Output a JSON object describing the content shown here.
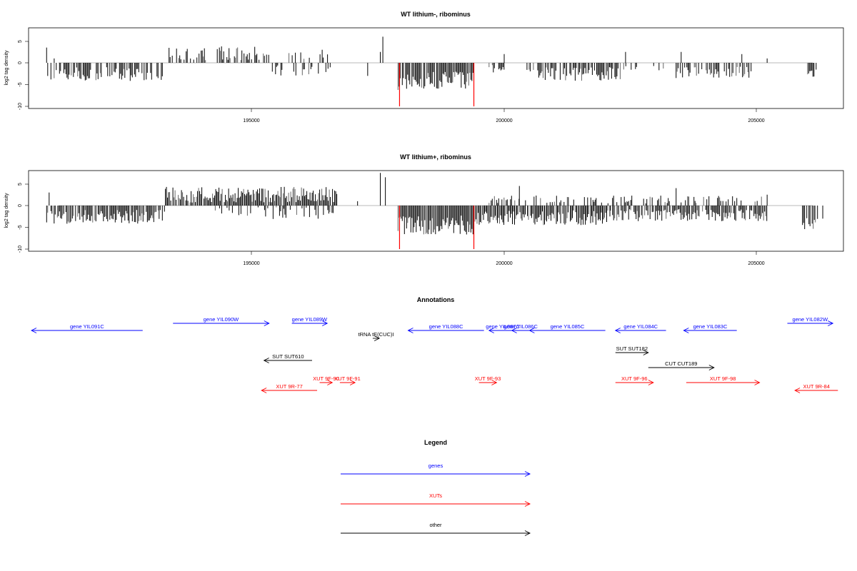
{
  "charts": [
    {
      "title": "WT lithium-, ribominus",
      "ylabel": "log2 tag density",
      "yticks": [
        "-10",
        "-5",
        "0",
        "5"
      ],
      "xticks": [
        "195000",
        "200000",
        "205000"
      ]
    },
    {
      "title": "WT lithium+, ribominus",
      "ylabel": "log2 tag density",
      "yticks": [
        "-10",
        "-5",
        "0",
        "5"
      ],
      "xticks": [
        "195000",
        "200000",
        "205000"
      ]
    }
  ],
  "chart_data": [
    {
      "type": "bar",
      "title": "WT lithium-, ribominus",
      "ylabel": "log2 tag density",
      "xlim": [
        190200,
        207700
      ],
      "ylim": [
        -10,
        8
      ],
      "grid": false,
      "segments": [
        {
          "from": 190950,
          "to": 193300,
          "sign": -1,
          "mean": 2.6,
          "spread": 1.6,
          "density": 0.55
        },
        {
          "from": 193350,
          "to": 195400,
          "sign": 1,
          "mean": 2.2,
          "spread": 1.6,
          "density": 0.55
        },
        {
          "from": 195350,
          "to": 196600,
          "sign": -1,
          "mean": 1.8,
          "spread": 1.2,
          "density": 0.25
        },
        {
          "from": 195700,
          "to": 196600,
          "sign": 1,
          "mean": 1.6,
          "spread": 1.0,
          "density": 0.25
        },
        {
          "from": 197900,
          "to": 199400,
          "sign": -1,
          "mean": 4.2,
          "spread": 2.2,
          "density": 0.9
        },
        {
          "from": 199700,
          "to": 200000,
          "sign": -1,
          "mean": 1.4,
          "spread": 1.0,
          "density": 0.4
        },
        {
          "from": 200450,
          "to": 202300,
          "sign": -1,
          "mean": 2.6,
          "spread": 1.6,
          "density": 0.75
        },
        {
          "from": 202300,
          "to": 203300,
          "sign": -1,
          "mean": 1.5,
          "spread": 1.0,
          "density": 0.25
        },
        {
          "from": 203400,
          "to": 204900,
          "sign": -1,
          "mean": 2.2,
          "spread": 1.4,
          "density": 0.6
        },
        {
          "from": 206000,
          "to": 206200,
          "sign": -1,
          "mean": 2.5,
          "spread": 1.0,
          "density": 0.7
        }
      ],
      "bars": [
        {
          "x": 190950,
          "y": 3.5
        },
        {
          "x": 191100,
          "y": 1.0
        },
        {
          "x": 196400,
          "y": 3.0
        },
        {
          "x": 197300,
          "y": -3.0
        },
        {
          "x": 197550,
          "y": 2.5
        },
        {
          "x": 197600,
          "y": 6.0
        },
        {
          "x": 200000,
          "y": 2.0
        },
        {
          "x": 202400,
          "y": 2.5
        },
        {
          "x": 203500,
          "y": 2.5
        },
        {
          "x": 204700,
          "y": 2.0
        },
        {
          "x": 205200,
          "y": 1.0
        }
      ],
      "red_bars": [
        {
          "x": 197930,
          "y": -10
        },
        {
          "x": 199400,
          "y": -10
        }
      ]
    },
    {
      "type": "bar",
      "title": "WT lithium+, ribominus",
      "ylabel": "log2 tag density",
      "xlim": [
        190200,
        207700
      ],
      "ylim": [
        -10,
        8
      ],
      "grid": false,
      "segments": [
        {
          "from": 190950,
          "to": 193300,
          "sign": -1,
          "mean": 2.6,
          "spread": 1.6,
          "density": 0.85
        },
        {
          "from": 193300,
          "to": 196700,
          "sign": 1,
          "mean": 2.5,
          "spread": 1.8,
          "density": 0.95
        },
        {
          "from": 194200,
          "to": 196700,
          "sign": -1,
          "mean": 1.8,
          "spread": 1.4,
          "density": 0.35
        },
        {
          "from": 197900,
          "to": 199400,
          "sign": -1,
          "mean": 4.5,
          "spread": 2.2,
          "density": 1.0
        },
        {
          "from": 199400,
          "to": 202100,
          "sign": -1,
          "mean": 2.8,
          "spread": 1.7,
          "density": 0.95
        },
        {
          "from": 199700,
          "to": 202100,
          "sign": 1,
          "mean": 1.4,
          "spread": 0.9,
          "density": 0.35
        },
        {
          "from": 202100,
          "to": 205200,
          "sign": -1,
          "mean": 2.2,
          "spread": 1.4,
          "density": 0.8
        },
        {
          "from": 202100,
          "to": 205200,
          "sign": 1,
          "mean": 1.4,
          "spread": 0.9,
          "density": 0.3
        },
        {
          "from": 205900,
          "to": 206200,
          "sign": -1,
          "mean": 4.0,
          "spread": 1.5,
          "density": 0.8
        }
      ],
      "bars": [
        {
          "x": 191000,
          "y": 3.0
        },
        {
          "x": 197100,
          "y": 1.0
        },
        {
          "x": 197550,
          "y": 7.5
        },
        {
          "x": 197650,
          "y": 6.5
        },
        {
          "x": 200300,
          "y": 4.5
        },
        {
          "x": 203400,
          "y": 4.0
        },
        {
          "x": 205200,
          "y": 2.5
        },
        {
          "x": 206300,
          "y": -3.0
        }
      ],
      "red_bars": [
        {
          "x": 197930,
          "y": -10
        },
        {
          "x": 199400,
          "y": -10
        }
      ]
    }
  ],
  "annotations": {
    "title": "Annotations",
    "items": [
      {
        "label": "gene YIL091C",
        "x1": 190650,
        "x2": 192850,
        "dir": "left",
        "color": "#0000ff",
        "row": 1
      },
      {
        "label": "gene YIL090W",
        "x1": 193450,
        "x2": 195350,
        "dir": "right",
        "color": "#0000ff",
        "row": 0
      },
      {
        "label": "gene YIL089W",
        "x1": 195800,
        "x2": 196500,
        "dir": "right",
        "color": "#0000ff",
        "row": 0
      },
      {
        "label": "gene YIL088C",
        "x1": 198100,
        "x2": 199600,
        "dir": "left",
        "color": "#0000ff",
        "row": 1
      },
      {
        "label": "gene YIL087C",
        "x1": 199700,
        "x2": 200250,
        "dir": "left",
        "color": "#0000ff",
        "row": 1
      },
      {
        "label": "gene YIL086C",
        "x1": 200150,
        "x2": 200500,
        "dir": "left",
        "color": "#0000ff",
        "row": 1
      },
      {
        "label": "gene YIL085C",
        "x1": 200500,
        "x2": 202000,
        "dir": "left",
        "color": "#0000ff",
        "row": 1
      },
      {
        "label": "gene YIL084C",
        "x1": 202200,
        "x2": 203200,
        "dir": "left",
        "color": "#0000ff",
        "row": 1
      },
      {
        "label": "gene YIL083C",
        "x1": 203550,
        "x2": 204600,
        "dir": "left",
        "color": "#0000ff",
        "row": 1
      },
      {
        "label": "gene YIL082W",
        "x1": 205600,
        "x2": 206500,
        "dir": "right",
        "color": "#0000ff",
        "row": 0
      },
      {
        "label": "tRNA tE(CUC)I",
        "x1": 197400,
        "x2": 197530,
        "dir": "right",
        "color": "#000000",
        "row": 2
      },
      {
        "label": "SUT SUT610",
        "x1": 195250,
        "x2": 196200,
        "dir": "left",
        "color": "#000000",
        "row": 3
      },
      {
        "label": "SUT SUT182",
        "x1": 202200,
        "x2": 202850,
        "dir": "right",
        "color": "#000000",
        "row": 4
      },
      {
        "label": "CUT CUT189",
        "x1": 202850,
        "x2": 204150,
        "dir": "right",
        "color": "#000000",
        "row": 5
      },
      {
        "label": "XUT 9R-77",
        "x1": 195200,
        "x2": 196300,
        "dir": "left",
        "color": "#ff0000",
        "row": 7
      },
      {
        "label": "XUT 9F-90",
        "x1": 196350,
        "x2": 196600,
        "dir": "right",
        "color": "#ff0000",
        "row": 6
      },
      {
        "label": "XUT 9F-91",
        "x1": 196750,
        "x2": 197050,
        "dir": "right",
        "color": "#ff0000",
        "row": 6
      },
      {
        "label": "XUT 9F-93",
        "x1": 199500,
        "x2": 199850,
        "dir": "right",
        "color": "#ff0000",
        "row": 6
      },
      {
        "label": "XUT 9F-96",
        "x1": 202200,
        "x2": 202950,
        "dir": "right",
        "color": "#ff0000",
        "row": 6
      },
      {
        "label": "XUT 9F-98",
        "x1": 203600,
        "x2": 205050,
        "dir": "right",
        "color": "#ff0000",
        "row": 6
      },
      {
        "label": "XUT 9R-84",
        "x1": 205750,
        "x2": 206600,
        "dir": "left",
        "color": "#ff0000",
        "row": 7
      }
    ]
  },
  "legend": {
    "title": "Legend",
    "items": [
      {
        "label": "genes",
        "color": "#0000ff"
      },
      {
        "label": "XUTs",
        "color": "#ff0000"
      },
      {
        "label": "other",
        "color": "#000000"
      }
    ]
  }
}
